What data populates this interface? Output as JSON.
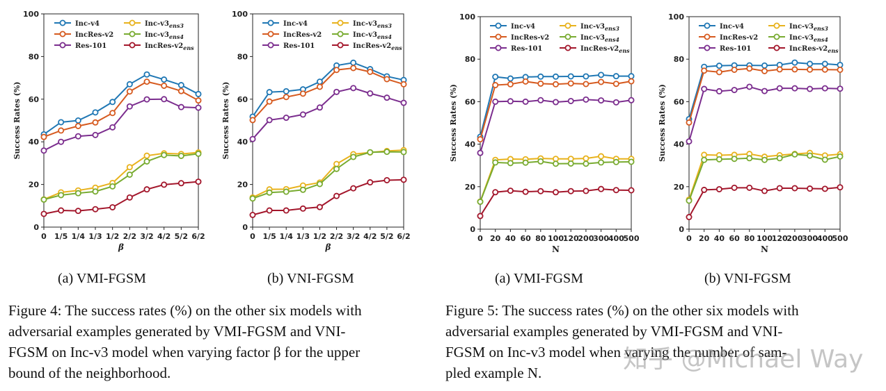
{
  "colors": {
    "Inc-v4": "#1f77b4",
    "IncRes-v2": "#d65a1f",
    "Res-101": "#7b2d8e",
    "Inc-v3ens3": "#e8b21c",
    "Inc-v3ens4": "#78ab30",
    "IncRes-v2ens": "#a3162b"
  },
  "legend": {
    "inc_v4": "Inc-v4",
    "incres_v2": "IncRes-v2",
    "res_101": "Res-101",
    "inc_v3_prefix": "Inc-v3",
    "ens3_sub": "ens3",
    "ens4_sub": "ens4",
    "incres_v2_prefix": "IncRes-v2",
    "ens_sub": "ens"
  },
  "figure4": {
    "sub_a": "(a) VMI-FGSM",
    "sub_b": "(b) VNI-FGSM",
    "caption_lines": [
      "Figure 4: The success rates (%) on the other six models with",
      "adversarial examples generated by VMI-FGSM and VNI-",
      "FGSM on Inc-v3 model when varying factor β for the upper",
      "bound of the neighborhood."
    ]
  },
  "figure5": {
    "sub_a": "(a) VMI-FGSM",
    "sub_b": "(b) VNI-FGSM",
    "caption_lines": [
      "Figure 5: The success rates (%) on the other six models with",
      "adversarial examples generated by VMI-FGSM and VNI-",
      "FGSM on Inc-v3 model when varying the number of sam-",
      "pled example N."
    ]
  },
  "watermark": "知乎 @Michael Way",
  "chart_data": [
    {
      "id": "fig4a",
      "type": "line",
      "xlabel": "β",
      "ylabel": "Success Rates (%)",
      "ylim": [
        0,
        100
      ],
      "yticks": [
        0,
        20,
        40,
        60,
        80,
        100
      ],
      "categories": [
        "0",
        "1/5",
        "1/4",
        "1/3",
        "1/2",
        "2/2",
        "3/2",
        "4/2",
        "5/2",
        "6/2"
      ],
      "series": [
        {
          "name": "Inc-v4",
          "values": [
            43.5,
            49.2,
            50.0,
            53.8,
            58.7,
            67.0,
            71.6,
            69.2,
            66.6,
            62.4
          ]
        },
        {
          "name": "IncRes-v2",
          "values": [
            42.3,
            45.3,
            47.4,
            49.1,
            53.5,
            63.6,
            68.2,
            66.3,
            63.8,
            59.4
          ]
        },
        {
          "name": "Res-101",
          "values": [
            35.9,
            40.0,
            42.6,
            43.2,
            46.8,
            56.6,
            59.9,
            60.0,
            56.3,
            56.0
          ]
        },
        {
          "name": "Inc-v3ens3",
          "values": [
            13.0,
            16.3,
            17.2,
            18.5,
            20.7,
            28.1,
            33.5,
            34.6,
            34.3,
            35.0
          ]
        },
        {
          "name": "Inc-v3ens4",
          "values": [
            12.9,
            15.0,
            15.9,
            16.7,
            19.1,
            24.6,
            30.8,
            33.8,
            33.4,
            34.4
          ]
        },
        {
          "name": "IncRes-v2ens",
          "values": [
            6.2,
            7.8,
            7.6,
            8.4,
            9.3,
            13.9,
            17.7,
            19.9,
            20.6,
            21.3
          ]
        }
      ]
    },
    {
      "id": "fig4b",
      "type": "line",
      "xlabel": "β",
      "ylabel": "Success Rates (%)",
      "ylim": [
        0,
        100
      ],
      "yticks": [
        0,
        20,
        40,
        60,
        80,
        100
      ],
      "categories": [
        "0",
        "1/5",
        "1/4",
        "1/3",
        "1/2",
        "2/2",
        "3/2",
        "4/2",
        "5/2",
        "6/2"
      ],
      "series": [
        {
          "name": "Inc-v4",
          "values": [
            51.8,
            63.3,
            63.7,
            64.6,
            68.2,
            75.8,
            77.1,
            74.1,
            70.7,
            69.0
          ]
        },
        {
          "name": "IncRes-v2",
          "values": [
            50.2,
            58.9,
            61.0,
            62.6,
            65.8,
            73.7,
            74.6,
            72.8,
            69.4,
            67.0
          ]
        },
        {
          "name": "Res-101",
          "values": [
            41.3,
            50.2,
            51.3,
            52.8,
            56.1,
            63.4,
            65.2,
            62.7,
            60.7,
            58.3
          ]
        },
        {
          "name": "Inc-v3ens3",
          "values": [
            13.9,
            17.7,
            17.8,
            19.5,
            20.9,
            29.6,
            34.2,
            35.0,
            35.7,
            36.1
          ]
        },
        {
          "name": "Inc-v3ens4",
          "values": [
            13.4,
            16.2,
            16.6,
            17.5,
            20.2,
            27.3,
            32.9,
            35.1,
            35.3,
            35.2
          ]
        },
        {
          "name": "IncRes-v2ens",
          "values": [
            5.7,
            7.8,
            7.8,
            8.7,
            9.4,
            14.6,
            18.2,
            21.0,
            22.0,
            22.2
          ]
        }
      ]
    },
    {
      "id": "fig5a",
      "type": "line",
      "xlabel": "N",
      "ylabel": "Success Rates (%)",
      "ylim": [
        0,
        100
      ],
      "yticks": [
        0,
        20,
        40,
        60,
        80,
        100
      ],
      "categories": [
        "0",
        "20",
        "40",
        "60",
        "80",
        "100",
        "120",
        "200",
        "300",
        "400",
        "500"
      ],
      "series": [
        {
          "name": "Inc-v4",
          "values": [
            43.5,
            71.7,
            70.9,
            71.6,
            71.8,
            71.8,
            71.9,
            71.9,
            72.6,
            72.0,
            72.0
          ]
        },
        {
          "name": "IncRes-v2",
          "values": [
            42.3,
            67.8,
            68.2,
            69.5,
            68.5,
            68.2,
            68.6,
            68.3,
            69.3,
            68.4,
            69.6
          ]
        },
        {
          "name": "Res-101",
          "values": [
            35.9,
            60.0,
            60.2,
            60.0,
            60.7,
            59.8,
            60.3,
            61.0,
            60.6,
            59.7,
            60.7
          ]
        },
        {
          "name": "Inc-v3ens3",
          "values": [
            13.0,
            32.6,
            33.0,
            32.9,
            33.3,
            33.1,
            33.1,
            33.3,
            34.3,
            33.1,
            33.1
          ]
        },
        {
          "name": "Inc-v3ens4",
          "values": [
            12.9,
            31.4,
            31.1,
            31.3,
            31.9,
            30.8,
            30.9,
            30.8,
            31.4,
            31.6,
            31.7
          ]
        },
        {
          "name": "IncRes-v2ens",
          "values": [
            6.2,
            17.4,
            18.1,
            17.6,
            17.9,
            17.4,
            17.9,
            18.0,
            18.9,
            18.4,
            18.3
          ]
        }
      ]
    },
    {
      "id": "fig5b",
      "type": "line",
      "xlabel": "N",
      "ylabel": "Success Rates (%)",
      "ylim": [
        0,
        100
      ],
      "yticks": [
        0,
        20,
        40,
        60,
        80,
        100
      ],
      "categories": [
        "0",
        "20",
        "40",
        "60",
        "80",
        "100",
        "120",
        "200",
        "300",
        "400",
        "500"
      ],
      "series": [
        {
          "name": "Inc-v4",
          "values": [
            51.8,
            76.4,
            76.9,
            77.1,
            77.1,
            77.0,
            77.3,
            78.4,
            77.8,
            77.8,
            77.3
          ]
        },
        {
          "name": "IncRes-v2",
          "values": [
            50.2,
            74.6,
            73.9,
            75.0,
            75.6,
            74.4,
            75.2,
            75.2,
            75.1,
            75.1,
            75.0
          ]
        },
        {
          "name": "Res-101",
          "values": [
            41.3,
            66.0,
            64.9,
            65.5,
            67.0,
            65.0,
            66.3,
            66.3,
            66.0,
            66.3,
            66.1
          ]
        },
        {
          "name": "Inc-v3ens3",
          "values": [
            13.9,
            35.0,
            34.8,
            35.0,
            35.4,
            34.1,
            34.8,
            35.4,
            35.9,
            34.7,
            35.3
          ]
        },
        {
          "name": "Inc-v3ens4",
          "values": [
            13.4,
            32.6,
            32.9,
            33.1,
            33.4,
            32.6,
            33.4,
            35.2,
            34.6,
            32.7,
            34.2
          ]
        },
        {
          "name": "IncRes-v2ens",
          "values": [
            5.7,
            18.5,
            18.8,
            19.5,
            19.5,
            18.0,
            19.3,
            19.3,
            19.1,
            19.0,
            19.7
          ]
        }
      ]
    }
  ]
}
